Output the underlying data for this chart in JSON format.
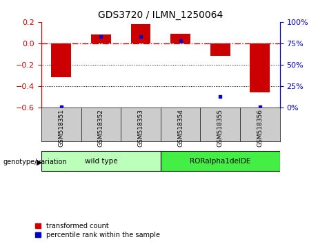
{
  "title": "GDS3720 / ILMN_1250064",
  "samples": [
    "GSM518351",
    "GSM518352",
    "GSM518353",
    "GSM518354",
    "GSM518355",
    "GSM518356"
  ],
  "red_values": [
    -0.32,
    0.08,
    0.18,
    0.09,
    -0.12,
    -0.46
  ],
  "blue_values_pct": [
    1,
    83,
    83,
    78,
    13,
    1
  ],
  "ylim_left": [
    -0.6,
    0.2
  ],
  "ylim_right": [
    0,
    100
  ],
  "yticks_left": [
    0.2,
    0,
    -0.2,
    -0.4,
    -0.6
  ],
  "yticks_right": [
    100,
    75,
    50,
    25,
    0
  ],
  "groups": [
    {
      "label": "wild type",
      "samples": [
        0,
        1,
        2
      ],
      "color": "#bbffbb"
    },
    {
      "label": "RORalpha1delDE",
      "samples": [
        3,
        4,
        5
      ],
      "color": "#44ee44"
    }
  ],
  "genotype_label": "genotype/variation",
  "legend_red": "transformed count",
  "legend_blue": "percentile rank within the sample",
  "bar_width": 0.5,
  "red_color": "#cc0000",
  "blue_color": "#0000cc",
  "zero_line_color": "#cc0000",
  "dotted_line_color": "#000000",
  "bg_color": "#ffffff",
  "plot_bg_color": "#ffffff",
  "xtick_bg_color": "#cccccc",
  "group_bg_light": "#bbffbb",
  "group_bg_dark": "#44ee44"
}
